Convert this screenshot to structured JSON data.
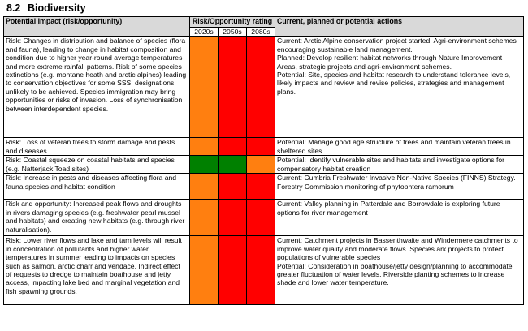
{
  "section": {
    "number": "8.2",
    "title": "Biodiversity"
  },
  "colors": {
    "orange": "#ff7f10",
    "red": "#ff0000",
    "green": "#008000",
    "header_bg": "#d9d9d9"
  },
  "table": {
    "headers": {
      "impact": "Potential Impact (risk/opportunity)",
      "rating": "Risk/Opportunity rating",
      "actions": "Current, planned or potential actions"
    },
    "periods": [
      "2020s",
      "2050s",
      "2080s"
    ],
    "rows": [
      {
        "impact": "Risk: Changes in distribution and balance of species (flora and fauna), leading to change in habitat composition and condition due to higher year-round average temperatures and more extreme rainfall patterns. Risk of some species extinctions (e.g. montane heath and arctic alpines) leading to conservation objectives for some SSSI designations unlikely to be achieved. Species immigration may bring opportunities or risks of invasion. Loss of synchronisation between interdependent species.",
        "ratings": [
          "orange",
          "red",
          "red"
        ],
        "actions": [
          "Current: Arctic Alpine conservation project started. Agri-environment schemes encouraging sustainable land management.",
          "Planned: Develop resilient habitat networks through Nature Improvement Areas, strategic projects and agri-environment schemes.",
          "Potential: Site, species and habitat research to understand tolerance levels, likely impacts and review and revise policies, strategies and management plans."
        ]
      },
      {
        "impact": "Risk: Loss of veteran trees to storm damage and pests and diseases",
        "ratings": [
          "orange",
          "red",
          "red"
        ],
        "actions": [
          "Potential: Manage good age structure of trees and maintain veteran trees in sheltered sites"
        ]
      },
      {
        "impact": "Risk: Coastal squeeze on coastal habitats and species (e.g. Natterjack Toad sites)",
        "ratings": [
          "green",
          "green",
          "orange"
        ],
        "actions": [
          "Potential: Identify vulnerable sites and habitats and investigate options for compensatory habitat creation"
        ]
      },
      {
        "impact": "Risk: Increase in pests and diseases affecting flora and fauna species and habitat condition",
        "ratings": [
          "orange",
          "red",
          "red"
        ],
        "actions": [
          "Current: Cumbria Freshwater Invasive Non-Native Species (FINNS) Strategy. Forestry Commission monitoring of phytophtera ramorum"
        ]
      },
      {
        "impact": "Risk and opportunity: Increased peak flows and droughts in rivers damaging species (e.g. freshwater pearl mussel and habitats) and creating new habitats (e.g. through river naturalisation).",
        "ratings": [
          "orange",
          "red",
          "red"
        ],
        "actions": [
          "Current: Valley planning in Patterdale and Borrowdale is exploring future options for river management"
        ]
      },
      {
        "impact": "Risk: Lower river flows and lake and tarn levels will result in concentration of pollutants and higher water temperatures in summer leading to impacts on species such as salmon, arctic charr and vendace. Indirect effect of requests to dredge to maintain boathouse and jetty access, impacting lake bed and marginal vegetation and fish spawning grounds.",
        "ratings": [
          "orange",
          "red",
          "red"
        ],
        "actions": [
          "Current: Catchment projects in Bassenthwaite and Windermere catchments to improve water quality and moderate flows. Species ark projects to protect populations of vulnerable species",
          "Potential: Consideration in boathouse/jetty design/planning to accommodate greater fluctuation of water levels. Riverside planting schemes to increase shade and lower water temperature."
        ]
      }
    ]
  }
}
